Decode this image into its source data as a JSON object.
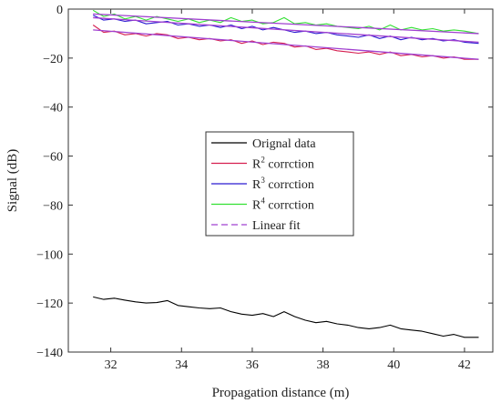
{
  "chart_data": {
    "type": "line",
    "title": "",
    "xlabel": "Propagation distance (m)",
    "ylabel": "Signal (dB)",
    "xlim": [
      30.8,
      42.8
    ],
    "ylim": [
      -140,
      0
    ],
    "xticks": [
      32,
      34,
      36,
      38,
      40,
      42
    ],
    "yticks": [
      0,
      -20,
      -40,
      -60,
      -80,
      -100,
      -120,
      -140
    ],
    "grid": false,
    "legend": {
      "placement": "center",
      "entries": [
        {
          "label": "Orignal data",
          "base": "Orignal data",
          "sup": "",
          "rest": "",
          "color": "#000000",
          "dash": false
        },
        {
          "label": "R2 corrction",
          "base": "R",
          "sup": "2",
          "rest": " corrction",
          "color": "#d62050",
          "dash": false
        },
        {
          "label": "R3 corrction",
          "base": "R",
          "sup": "3",
          "rest": " corrction",
          "color": "#2a1ad0",
          "dash": false
        },
        {
          "label": "R4 corrction",
          "base": "R",
          "sup": "4",
          "rest": " corrction",
          "color": "#33e033",
          "dash": false
        },
        {
          "label": "Linear fit",
          "base": "Linear fit",
          "sup": "",
          "rest": "",
          "color": "#a040d0",
          "dash": true
        }
      ]
    },
    "series": [
      {
        "label": "Orignal data",
        "color": "#000000",
        "x": [
          31.5,
          31.8,
          32.1,
          32.4,
          32.7,
          33.0,
          33.3,
          33.6,
          33.9,
          34.2,
          34.5,
          34.8,
          35.1,
          35.4,
          35.7,
          36.0,
          36.3,
          36.6,
          36.9,
          37.2,
          37.5,
          37.8,
          38.1,
          38.4,
          38.7,
          39.0,
          39.3,
          39.6,
          39.9,
          40.2,
          40.5,
          40.8,
          41.1,
          41.4,
          41.7,
          42.0,
          42.4
        ],
        "y": [
          -117.5,
          -118.5,
          -118.0,
          -118.8,
          -119.5,
          -120.0,
          -119.8,
          -119.0,
          -121.0,
          -121.5,
          -122.0,
          -122.3,
          -122.0,
          -123.5,
          -124.5,
          -125.0,
          -124.3,
          -125.5,
          -123.5,
          -125.5,
          -127.0,
          -128.0,
          -127.5,
          -128.5,
          -129.0,
          -130.0,
          -130.5,
          -130.0,
          -129.0,
          -130.5,
          -131.0,
          -131.5,
          -132.5,
          -133.5,
          -132.8,
          -134.0,
          -134.0
        ]
      },
      {
        "label": "R2 corrction",
        "color": "#d62050",
        "x": [
          31.5,
          31.8,
          32.1,
          32.4,
          32.7,
          33.0,
          33.3,
          33.6,
          33.9,
          34.2,
          34.5,
          34.8,
          35.1,
          35.4,
          35.7,
          36.0,
          36.3,
          36.6,
          36.9,
          37.2,
          37.5,
          37.8,
          38.1,
          38.4,
          38.7,
          39.0,
          39.3,
          39.6,
          39.9,
          40.2,
          40.5,
          40.8,
          41.1,
          41.4,
          41.7,
          42.0,
          42.4
        ],
        "y": [
          -6.5,
          -9.5,
          -9.0,
          -10.5,
          -10.0,
          -11.0,
          -10.0,
          -10.5,
          -12.0,
          -11.5,
          -12.5,
          -12.0,
          -13.0,
          -12.5,
          -14.0,
          -13.0,
          -14.5,
          -13.5,
          -14.0,
          -15.5,
          -15.0,
          -16.5,
          -16.0,
          -17.0,
          -17.5,
          -18.0,
          -17.5,
          -18.5,
          -17.5,
          -19.0,
          -18.5,
          -19.5,
          -19.0,
          -20.0,
          -19.5,
          -20.5,
          -20.5
        ]
      },
      {
        "label": "R3 corrction",
        "color": "#2a1ad0",
        "x": [
          31.5,
          31.8,
          32.1,
          32.4,
          32.7,
          33.0,
          33.3,
          33.6,
          33.9,
          34.2,
          34.5,
          34.8,
          35.1,
          35.4,
          35.7,
          36.0,
          36.3,
          36.6,
          36.9,
          37.2,
          37.5,
          37.8,
          38.1,
          38.4,
          38.7,
          39.0,
          39.3,
          39.6,
          39.9,
          40.2,
          40.5,
          40.8,
          41.1,
          41.4,
          41.7,
          42.0,
          42.4
        ],
        "y": [
          -2.5,
          -4.5,
          -4.0,
          -5.0,
          -4.5,
          -6.0,
          -5.5,
          -5.0,
          -6.5,
          -6.0,
          -7.0,
          -6.5,
          -7.5,
          -6.5,
          -8.0,
          -7.0,
          -8.5,
          -7.5,
          -8.5,
          -9.5,
          -9.0,
          -10.0,
          -9.5,
          -10.5,
          -11.0,
          -11.5,
          -10.5,
          -12.0,
          -11.0,
          -12.5,
          -11.5,
          -12.5,
          -12.0,
          -13.0,
          -12.5,
          -13.5,
          -14.0
        ]
      },
      {
        "label": "R4 corrction",
        "color": "#33e033",
        "x": [
          31.5,
          31.8,
          32.1,
          32.4,
          32.7,
          33.0,
          33.3,
          33.6,
          33.9,
          34.2,
          34.5,
          34.8,
          35.1,
          35.4,
          35.7,
          36.0,
          36.3,
          36.6,
          36.9,
          37.2,
          37.5,
          37.8,
          38.1,
          38.4,
          38.7,
          39.0,
          39.3,
          39.6,
          39.9,
          40.2,
          40.5,
          40.8,
          41.1,
          41.4,
          41.7,
          42.0,
          42.4
        ],
        "y": [
          -0.5,
          -3.0,
          -2.0,
          -4.0,
          -3.0,
          -4.5,
          -3.0,
          -4.0,
          -5.0,
          -4.0,
          -5.5,
          -4.5,
          -5.5,
          -3.5,
          -5.0,
          -4.5,
          -6.0,
          -5.5,
          -3.5,
          -6.0,
          -5.5,
          -6.5,
          -6.0,
          -7.0,
          -7.5,
          -8.0,
          -7.0,
          -8.5,
          -6.5,
          -8.5,
          -7.5,
          -8.5,
          -8.0,
          -9.0,
          -8.5,
          -9.0,
          -10.0
        ]
      }
    ],
    "fit_lines": [
      {
        "label": "Linear fit",
        "color": "#a040d0",
        "x": [
          31.5,
          42.4
        ],
        "y": [
          -8.5,
          -20.5
        ]
      },
      {
        "label": "Linear fit",
        "color": "#a040d0",
        "x": [
          31.5,
          42.4
        ],
        "y": [
          -3.5,
          -13.5
        ]
      },
      {
        "label": "Linear fit",
        "color": "#a040d0",
        "x": [
          31.5,
          42.4
        ],
        "y": [
          -2.0,
          -10.0
        ]
      }
    ]
  }
}
